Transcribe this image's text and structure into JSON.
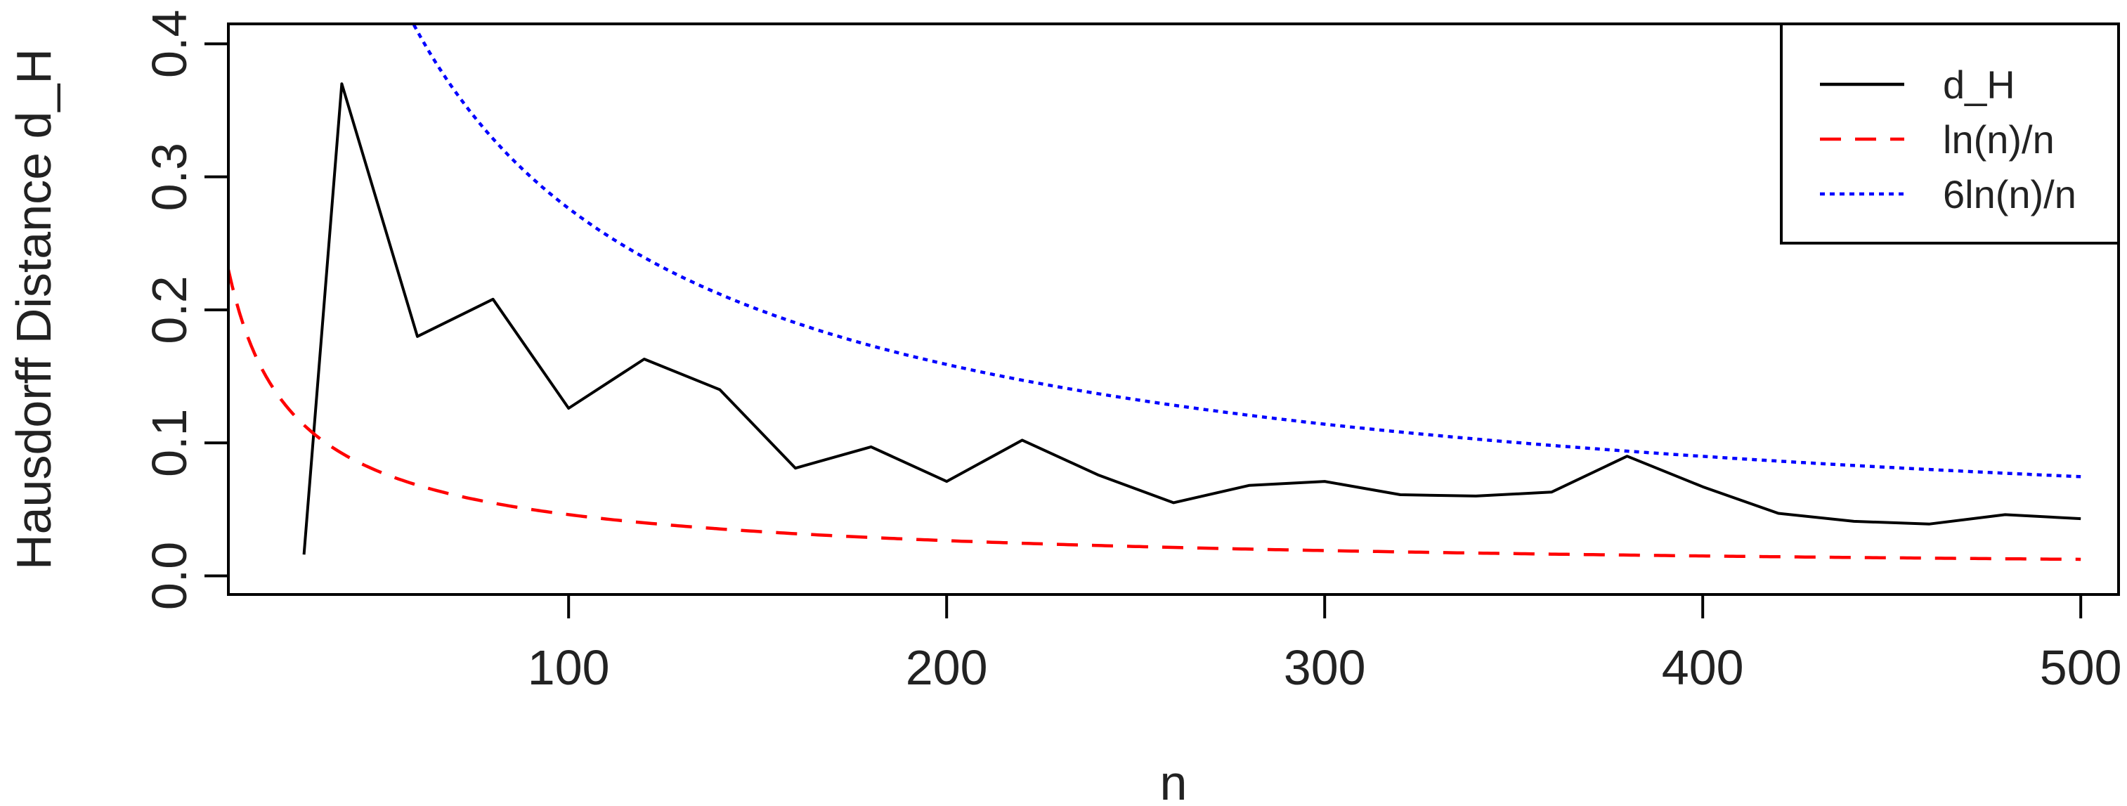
{
  "chart_data": {
    "type": "line",
    "title": "",
    "xlabel": "n",
    "ylabel": "Hausdorff Distance d_H",
    "xlim": [
      10,
      510
    ],
    "ylim": [
      -0.014,
      0.415
    ],
    "x_ticks": [
      100,
      200,
      300,
      400,
      500
    ],
    "x_tick_labels": [
      "100",
      "200",
      "300",
      "400",
      "500"
    ],
    "y_ticks": [
      0.0,
      0.1,
      0.2,
      0.3,
      0.4
    ],
    "y_tick_labels": [
      "0.0",
      "0.1",
      "0.2",
      "0.3",
      "0.4"
    ],
    "grid": false,
    "legend_position": "top-right",
    "series": [
      {
        "name": "d_H",
        "color": "#000000",
        "dash": "solid",
        "x": [
          30,
          40,
          60,
          80,
          100,
          120,
          140,
          160,
          180,
          200,
          220,
          240,
          260,
          280,
          300,
          320,
          340,
          360,
          380,
          400,
          420,
          440,
          460,
          480,
          500
        ],
        "y": [
          0.016,
          0.37,
          0.18,
          0.208,
          0.126,
          0.163,
          0.14,
          0.081,
          0.097,
          0.071,
          0.102,
          0.076,
          0.055,
          0.068,
          0.071,
          0.061,
          0.06,
          0.063,
          0.09,
          0.067,
          0.047,
          0.041,
          0.039,
          0.046,
          0.043
        ]
      },
      {
        "name": "ln(n)/n",
        "color": "#ff0000",
        "dash": "dashed",
        "formula": "ln(n)/n",
        "x_range": [
          10,
          500
        ]
      },
      {
        "name": "6ln(n)/n",
        "color": "#0000ff",
        "dash": "dotted",
        "formula": "6ln(n)/n",
        "x_range": [
          10,
          500
        ]
      }
    ]
  }
}
